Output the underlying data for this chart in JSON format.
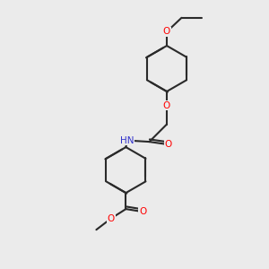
{
  "background_color": "#ebebeb",
  "bond_color": "#2a2a2a",
  "atom_colors": {
    "O": "#ff0000",
    "N": "#3333cc",
    "C": "#2a2a2a"
  },
  "figsize": [
    3.0,
    3.0
  ],
  "dpi": 100,
  "lw": 1.5,
  "font_size": 7.5
}
